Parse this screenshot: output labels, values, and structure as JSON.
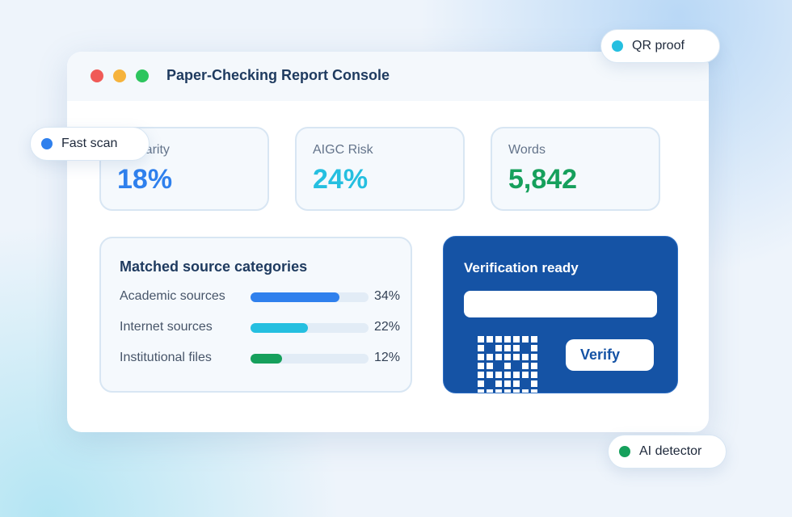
{
  "window": {
    "title": "Paper-Checking Report Console"
  },
  "metrics": [
    {
      "label": "Similarity",
      "value": "18%",
      "color": "#2f80ed"
    },
    {
      "label": "AIGC Risk",
      "value": "24%",
      "color": "#25bfe0"
    },
    {
      "label": "Words",
      "value": "5,842",
      "color": "#16a05c"
    }
  ],
  "sources": {
    "title": "Matched source categories",
    "rows": [
      {
        "label": "Academic sources",
        "value": 34,
        "value_label": "34%",
        "color": "#2f80ed"
      },
      {
        "label": "Internet sources",
        "value": 22,
        "value_label": "22%",
        "color": "#25bfe0"
      },
      {
        "label": "Institutional files",
        "value": 12,
        "value_label": "12%",
        "color": "#16a05c"
      }
    ]
  },
  "verification": {
    "title": "Verification ready",
    "button": "Verify"
  },
  "chips": [
    {
      "label": "QR proof",
      "color": "#25bfe0"
    },
    {
      "label": "Fast scan",
      "color": "#2f80ed"
    },
    {
      "label": "AI detector",
      "color": "#16a05c"
    }
  ]
}
